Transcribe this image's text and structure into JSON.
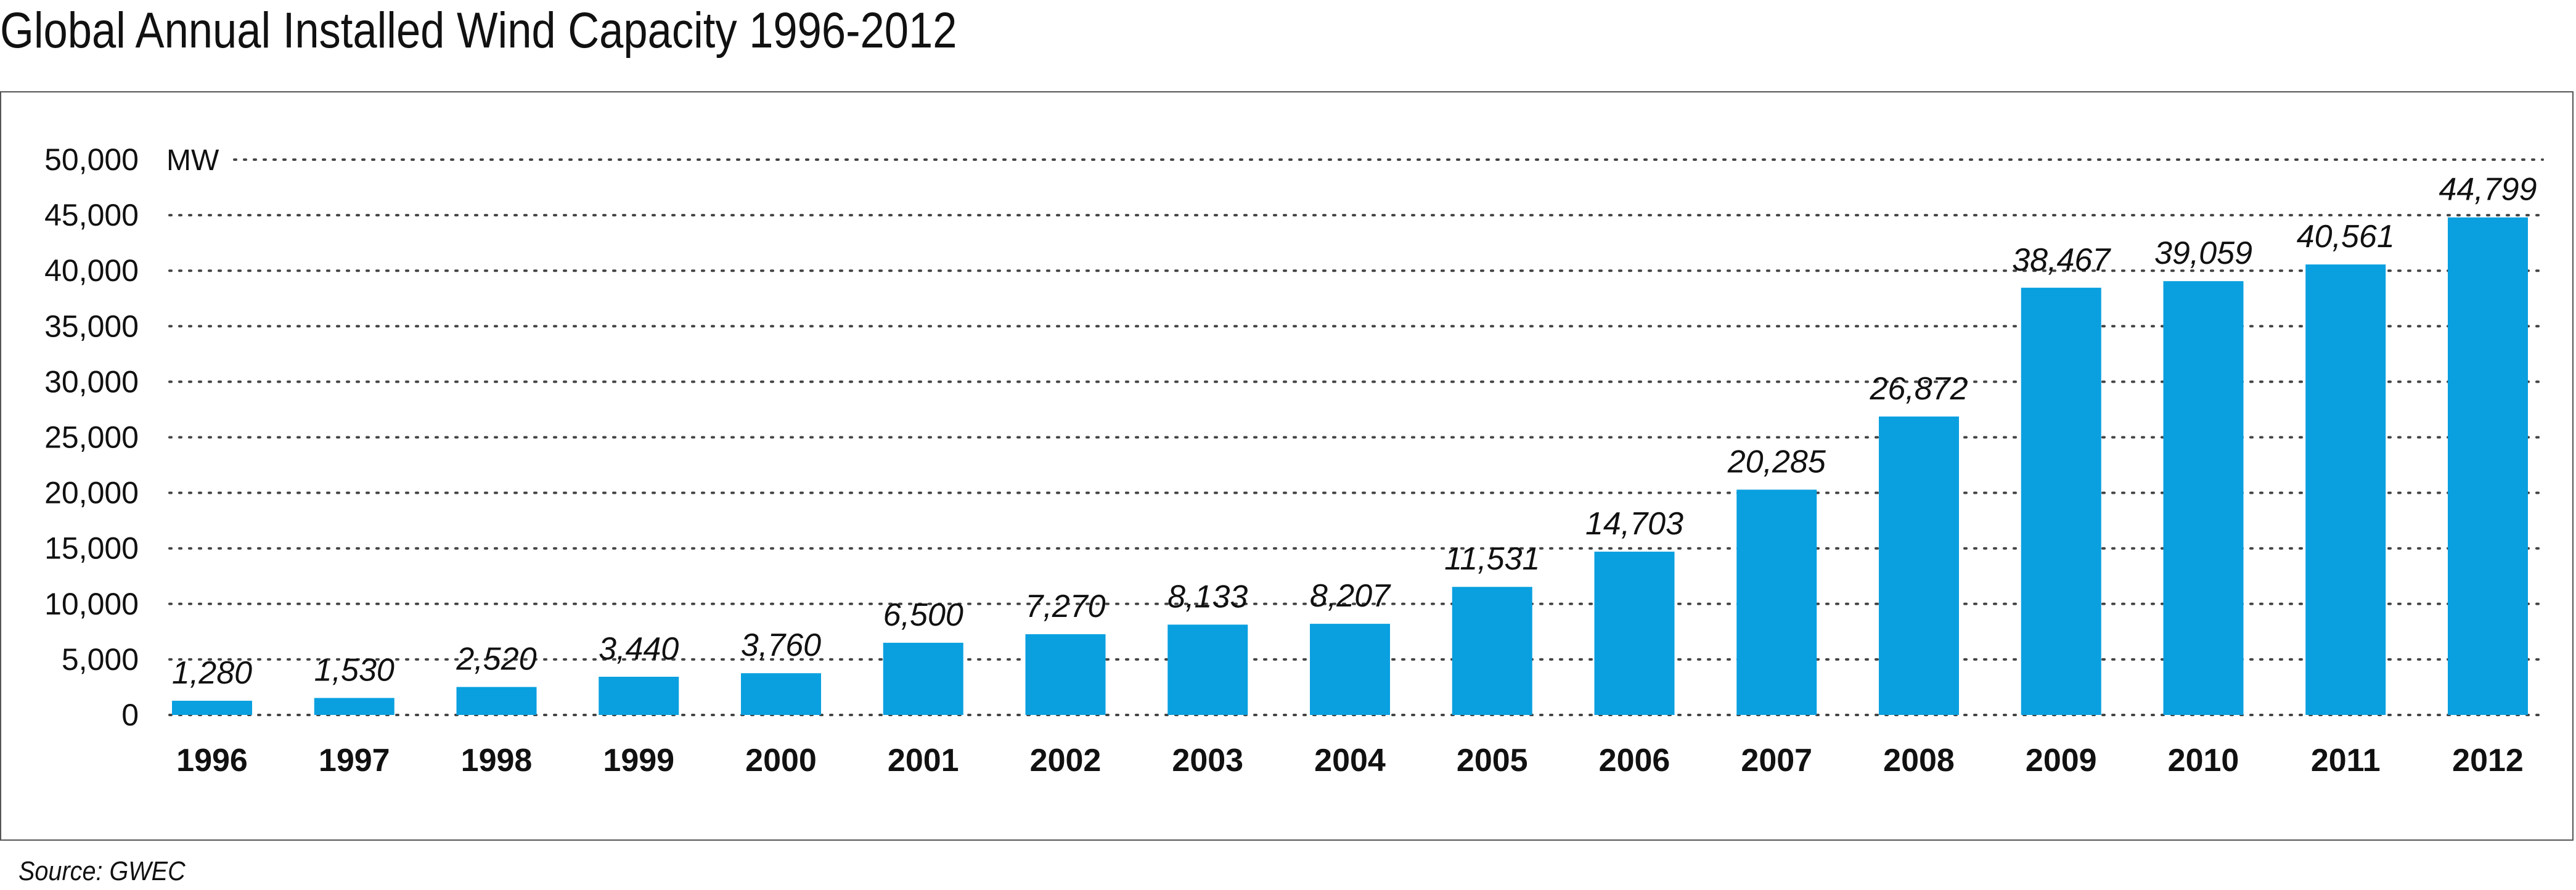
{
  "title": "Global Annual Installed Wind Capacity 1996-2012",
  "source": "Source: GWEC",
  "chart_data": {
    "type": "bar",
    "title": "Global Annual Installed Wind Capacity 1996-2012",
    "ylabel": "MW",
    "xlabel": "",
    "categories": [
      "1996",
      "1997",
      "1998",
      "1999",
      "2000",
      "2001",
      "2002",
      "2003",
      "2004",
      "2005",
      "2006",
      "2007",
      "2008",
      "2009",
      "2010",
      "2011",
      "2012"
    ],
    "values": [
      1280,
      1530,
      2520,
      3440,
      3760,
      6500,
      7270,
      8133,
      8207,
      11531,
      14703,
      20285,
      26872,
      38467,
      39059,
      40561,
      44799
    ],
    "data_labels": [
      "1,280",
      "1,530",
      "2,520",
      "3,440",
      "3,760",
      "6,500",
      "7,270",
      "8,133",
      "8,207",
      "11,531",
      "14,703",
      "20,285",
      "26,872",
      "38,467",
      "39,059",
      "40,561",
      "44,799"
    ],
    "ylim": [
      0,
      50000
    ],
    "yticks": [
      0,
      5000,
      10000,
      15000,
      20000,
      25000,
      30000,
      35000,
      40000,
      45000,
      50000
    ],
    "ytick_labels": [
      "0",
      "5,000",
      "10,000",
      "15,000",
      "20,000",
      "25,000",
      "30,000",
      "35,000",
      "40,000",
      "45,000",
      "50,000"
    ],
    "grid": "dotted horizontal",
    "bar_color": "#0aa0e0"
  }
}
